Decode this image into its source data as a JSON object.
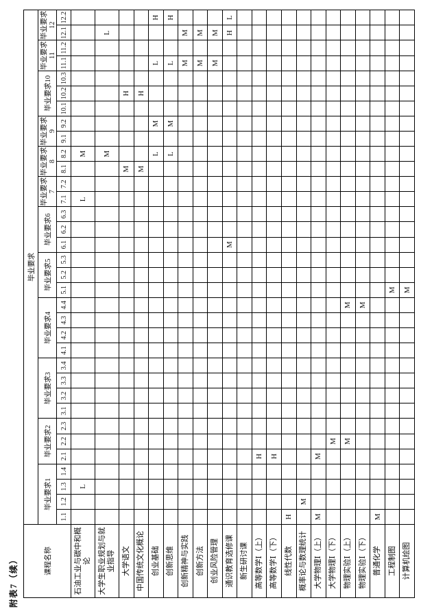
{
  "caption": "附表7（续）",
  "table": {
    "course_header": "课程名称",
    "requirement_header": "毕业要求",
    "groups": [
      {
        "label": "毕业要求1",
        "subs": [
          "1.1",
          "1.2",
          "1.3",
          "1.4"
        ]
      },
      {
        "label": "毕业要求2",
        "subs": [
          "2.1",
          "2.2",
          "2.3"
        ]
      },
      {
        "label": "毕业要求3",
        "subs": [
          "3.1",
          "3.2",
          "3.3",
          "3.4"
        ]
      },
      {
        "label": "毕业要求4",
        "subs": [
          "4.1",
          "4.2",
          "4.3",
          "4.4"
        ]
      },
      {
        "label": "毕业要求5",
        "subs": [
          "5.1",
          "5.2",
          "5.3"
        ]
      },
      {
        "label": "毕业要求6",
        "subs": [
          "6.1",
          "6.2",
          "6.3"
        ]
      },
      {
        "label": "毕业要求7",
        "subs": [
          "7.1",
          "7.2"
        ]
      },
      {
        "label": "毕业要求8",
        "subs": [
          "8.1",
          "8.2"
        ]
      },
      {
        "label": "毕业要求9",
        "subs": [
          "9.1",
          "9.2"
        ]
      },
      {
        "label": "毕业要求10",
        "subs": [
          "10.1",
          "10.2",
          "10.3"
        ]
      },
      {
        "label": "毕业要求11",
        "subs": [
          "11.1",
          "11.2"
        ]
      },
      {
        "label": "毕业要求12",
        "subs": [
          "12.1",
          "12.2"
        ]
      }
    ],
    "mark_levels": {
      "high": "H",
      "medium": "M",
      "low": "L"
    },
    "courses": [
      {
        "name": "石油工业与碳中和概论",
        "two_line": true,
        "marks": {
          "1.3": "L",
          "7.1": "L",
          "8.2": "M"
        }
      },
      {
        "name": "大学生职业规划与就业指导",
        "two_line": true,
        "marks": {
          "8.2": "M",
          "12.1": "L"
        }
      },
      {
        "name": "大学语文",
        "two_line": false,
        "marks": {
          "8.1": "M",
          "10.2": "H"
        }
      },
      {
        "name": "中国传统文化概论",
        "two_line": false,
        "marks": {
          "8.1": "M",
          "10.2": "H"
        }
      },
      {
        "name": "创业基础",
        "two_line": false,
        "marks": {
          "8.2": "L",
          "9.2": "M",
          "11.1": "L",
          "12.2": "H"
        }
      },
      {
        "name": "创新思维",
        "two_line": false,
        "marks": {
          "8.2": "L",
          "9.2": "M",
          "11.1": "L",
          "12.2": "H"
        }
      },
      {
        "name": "创新精神与实践",
        "two_line": false,
        "marks": {
          "11.1": "M",
          "12.1": "M"
        }
      },
      {
        "name": "创新方法",
        "two_line": false,
        "marks": {
          "11.1": "M",
          "12.1": "M"
        }
      },
      {
        "name": "创业风险管理",
        "two_line": false,
        "marks": {
          "11.1": "M",
          "12.1": "M"
        }
      },
      {
        "name": "通识教育选修课",
        "two_line": false,
        "marks": {
          "6.1": "M",
          "12.1": "H",
          "12.2": "L"
        }
      },
      {
        "name": "新生研讨课",
        "two_line": false,
        "marks": {}
      },
      {
        "name": "高等数学Ⅰ（上）",
        "two_line": false,
        "marks": {
          "2.1": "H"
        }
      },
      {
        "name": "高等数学Ⅰ（下）",
        "two_line": false,
        "marks": {
          "2.1": "H"
        }
      },
      {
        "name": "线性代数",
        "two_line": false,
        "marks": {
          "1.1": "H"
        }
      },
      {
        "name": "概率论与数理统计",
        "two_line": false,
        "marks": {
          "1.2": "M"
        }
      },
      {
        "name": "大学物理Ⅰ（上）",
        "two_line": false,
        "marks": {
          "1.1": "M",
          "2.1": "M"
        }
      },
      {
        "name": "大学物理Ⅰ（下）",
        "two_line": false,
        "marks": {
          "2.2": "M"
        }
      },
      {
        "name": "物理实验Ⅰ（上）",
        "two_line": false,
        "marks": {
          "2.2": "M",
          "4.4": "M"
        }
      },
      {
        "name": "物理实验Ⅰ（下）",
        "two_line": false,
        "marks": {
          "4.4": "M"
        }
      },
      {
        "name": "普通化学",
        "two_line": false,
        "marks": {
          "1.1": "M"
        }
      },
      {
        "name": "工程制图",
        "two_line": false,
        "marks": {
          "5.1": "M"
        }
      },
      {
        "name": "计算机绘图",
        "two_line": false,
        "marks": {
          "5.1": "M"
        }
      }
    ]
  }
}
